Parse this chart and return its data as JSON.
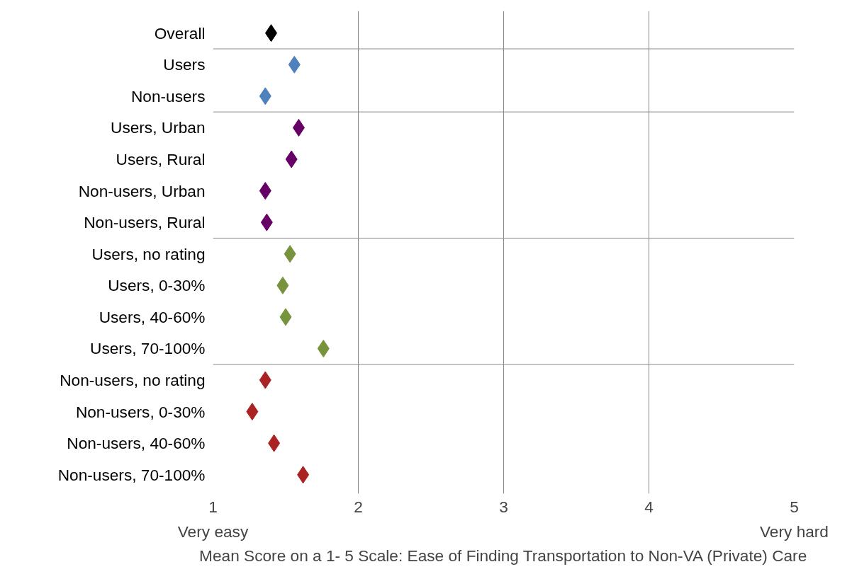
{
  "chart_data": {
    "type": "scatter",
    "orientation": "horizontal",
    "xlabel": "Mean Score on a 1- 5 Scale: Ease of Finding Transportation to Non-VA (Private) Care",
    "annotations": [
      "Very easy",
      "Very hard"
    ],
    "categories": [
      "Overall",
      "Users",
      "Non-users",
      "Users, Urban",
      "Users, Rural",
      "Non-users, Urban",
      "Non-users, Rural",
      "Users, no rating",
      "Users, 0-30%",
      "Users, 40-60%",
      "Users, 70-100%",
      "Non-users, no rating",
      "Non-users, 0-30%",
      "Non-users, 40-60%",
      "Non-users, 70-100%"
    ],
    "series": [
      {
        "color": "#000000",
        "values": [
          1.4,
          null,
          null,
          null,
          null,
          null,
          null,
          null,
          null,
          null,
          null,
          null,
          null,
          null,
          null
        ]
      },
      {
        "color": "#4f81bd",
        "values": [
          null,
          1.56,
          1.36,
          null,
          null,
          null,
          null,
          null,
          null,
          null,
          null,
          null,
          null,
          null,
          null
        ]
      },
      {
        "color": "#660066",
        "values": [
          null,
          null,
          null,
          1.59,
          1.54,
          1.36,
          1.37,
          null,
          null,
          null,
          null,
          null,
          null,
          null,
          null
        ]
      },
      {
        "color": "#77933c",
        "values": [
          null,
          null,
          null,
          null,
          null,
          null,
          null,
          1.53,
          1.48,
          1.5,
          1.76,
          null,
          null,
          null,
          null
        ]
      },
      {
        "color": "#aa2222",
        "values": [
          null,
          null,
          null,
          null,
          null,
          null,
          null,
          null,
          null,
          null,
          null,
          1.36,
          1.27,
          1.42,
          1.62
        ]
      }
    ],
    "xlim": [
      1,
      5
    ],
    "xticks": [
      1,
      2,
      3,
      4,
      5
    ],
    "grid": "x",
    "marker": "diamond"
  }
}
